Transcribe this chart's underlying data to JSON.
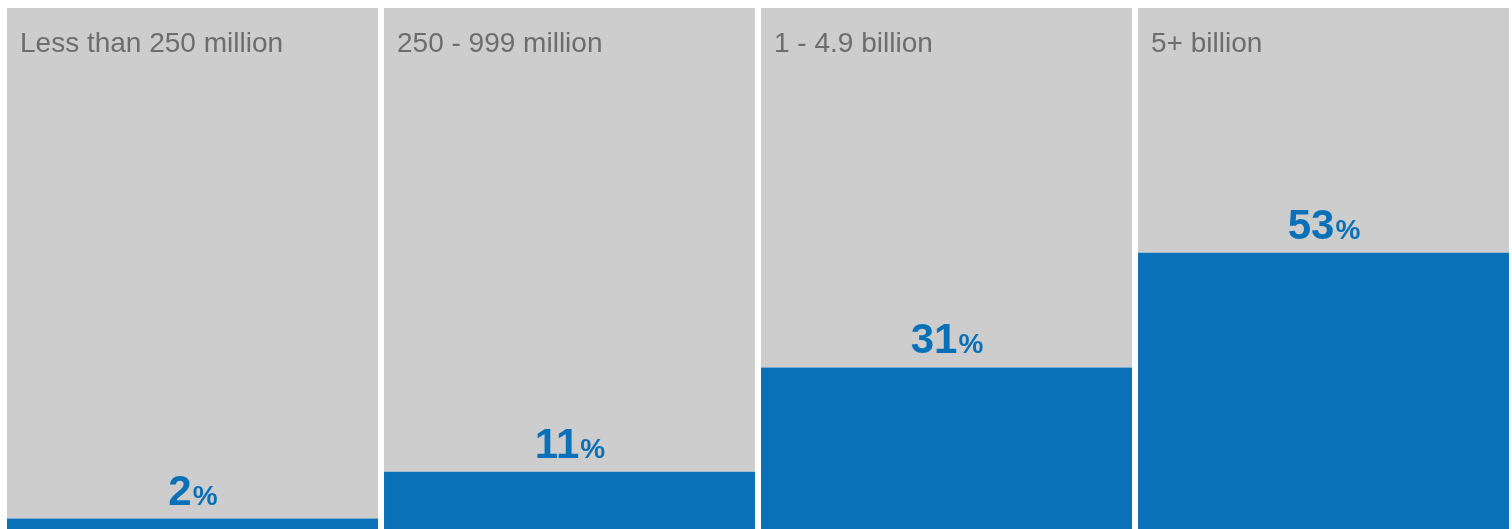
{
  "chart_data": {
    "type": "bar",
    "categories": [
      "Less than 250 million",
      "250 - 999 million",
      "1 - 4.9 billion",
      "5+ billion"
    ],
    "series": [
      {
        "color": "#0a71b8",
        "values": [
          2,
          11,
          31,
          53
        ],
        "value_labels": [
          "2%",
          "11%",
          "31%",
          "53%"
        ]
      },
      {
        "color": "#cdcdcd",
        "values": [
          98,
          89,
          69,
          47
        ]
      }
    ],
    "stacked": true,
    "ylim": [
      0,
      100
    ]
  }
}
